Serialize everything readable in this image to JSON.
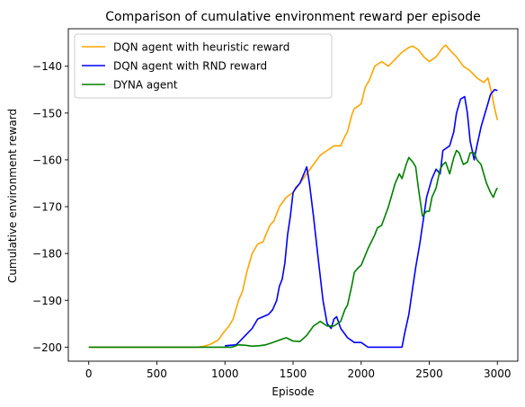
{
  "chart_data": {
    "type": "line",
    "title": "Comparison of cumulative environment reward per episode",
    "xlabel": "Episode",
    "ylabel": "Cumulative environment reward",
    "xlim": [
      -150,
      3150
    ],
    "ylim": [
      -203,
      -132
    ],
    "xticks": [
      0,
      500,
      1000,
      1500,
      2000,
      2500,
      3000
    ],
    "yticks": [
      -200,
      -190,
      -180,
      -170,
      -160,
      -150,
      -140
    ],
    "xtick_labels": [
      "0",
      "500",
      "1000",
      "1500",
      "2000",
      "2500",
      "3000"
    ],
    "ytick_labels": [
      "−200",
      "−190",
      "−180",
      "−170",
      "−160",
      "−150",
      "−140"
    ],
    "grid": false,
    "legend_position": "top-left",
    "series": [
      {
        "name": "DQN agent with heuristic reward",
        "color": "#FFA500",
        "points": [
          [
            0,
            -200
          ],
          [
            800,
            -200
          ],
          [
            850,
            -199.8
          ],
          [
            900,
            -199.3
          ],
          [
            950,
            -198.5
          ],
          [
            1000,
            -196.5
          ],
          [
            1030,
            -195.5
          ],
          [
            1060,
            -194
          ],
          [
            1100,
            -190
          ],
          [
            1130,
            -188
          ],
          [
            1160,
            -184
          ],
          [
            1200,
            -180
          ],
          [
            1240,
            -178
          ],
          [
            1280,
            -177.5
          ],
          [
            1300,
            -176
          ],
          [
            1330,
            -174
          ],
          [
            1360,
            -173
          ],
          [
            1400,
            -170
          ],
          [
            1450,
            -168
          ],
          [
            1500,
            -167
          ],
          [
            1550,
            -165
          ],
          [
            1600,
            -163
          ],
          [
            1650,
            -161
          ],
          [
            1700,
            -159
          ],
          [
            1750,
            -158
          ],
          [
            1800,
            -157
          ],
          [
            1850,
            -157
          ],
          [
            1880,
            -155
          ],
          [
            1900,
            -154
          ],
          [
            1930,
            -150.5
          ],
          [
            1950,
            -149
          ],
          [
            1980,
            -148.5
          ],
          [
            2000,
            -148
          ],
          [
            2030,
            -144.5
          ],
          [
            2060,
            -143
          ],
          [
            2100,
            -140
          ],
          [
            2150,
            -139
          ],
          [
            2200,
            -140
          ],
          [
            2250,
            -138.5
          ],
          [
            2300,
            -137
          ],
          [
            2350,
            -136
          ],
          [
            2380,
            -135.7
          ],
          [
            2420,
            -136.5
          ],
          [
            2460,
            -138
          ],
          [
            2500,
            -139
          ],
          [
            2550,
            -138
          ],
          [
            2600,
            -136
          ],
          [
            2620,
            -135.5
          ],
          [
            2650,
            -136.5
          ],
          [
            2700,
            -138
          ],
          [
            2750,
            -140
          ],
          [
            2800,
            -141
          ],
          [
            2850,
            -142.5
          ],
          [
            2900,
            -143.5
          ],
          [
            2930,
            -142.5
          ],
          [
            2960,
            -146
          ],
          [
            2980,
            -149
          ],
          [
            3000,
            -151.5
          ]
        ]
      },
      {
        "name": "DQN agent with RND reward",
        "color": "#0000FF",
        "points": [
          [
            1000,
            -199.7
          ],
          [
            1080,
            -199.5
          ],
          [
            1100,
            -199
          ],
          [
            1150,
            -197.5
          ],
          [
            1200,
            -196
          ],
          [
            1240,
            -194
          ],
          [
            1280,
            -193.5
          ],
          [
            1320,
            -193
          ],
          [
            1350,
            -192
          ],
          [
            1380,
            -190
          ],
          [
            1400,
            -187
          ],
          [
            1420,
            -185.5
          ],
          [
            1440,
            -182
          ],
          [
            1460,
            -176
          ],
          [
            1480,
            -172
          ],
          [
            1500,
            -167
          ],
          [
            1520,
            -166
          ],
          [
            1550,
            -165
          ],
          [
            1580,
            -163
          ],
          [
            1600,
            -161.5
          ],
          [
            1620,
            -165
          ],
          [
            1650,
            -172
          ],
          [
            1680,
            -180
          ],
          [
            1700,
            -185
          ],
          [
            1720,
            -190
          ],
          [
            1750,
            -195
          ],
          [
            1780,
            -196
          ],
          [
            1800,
            -194
          ],
          [
            1820,
            -193.5
          ],
          [
            1850,
            -196
          ],
          [
            1900,
            -198
          ],
          [
            1950,
            -199
          ],
          [
            2000,
            -199
          ],
          [
            2050,
            -200
          ],
          [
            2300,
            -200
          ],
          [
            2320,
            -197
          ],
          [
            2350,
            -193
          ],
          [
            2380,
            -187
          ],
          [
            2400,
            -183
          ],
          [
            2430,
            -178
          ],
          [
            2460,
            -172
          ],
          [
            2480,
            -168
          ],
          [
            2500,
            -166
          ],
          [
            2520,
            -164
          ],
          [
            2550,
            -162
          ],
          [
            2580,
            -163
          ],
          [
            2600,
            -158
          ],
          [
            2650,
            -157
          ],
          [
            2680,
            -154
          ],
          [
            2700,
            -150
          ],
          [
            2730,
            -147
          ],
          [
            2760,
            -146.5
          ],
          [
            2780,
            -150
          ],
          [
            2800,
            -156
          ],
          [
            2830,
            -160
          ],
          [
            2850,
            -157
          ],
          [
            2880,
            -153
          ],
          [
            2900,
            -151
          ],
          [
            2930,
            -148
          ],
          [
            2950,
            -146
          ],
          [
            2980,
            -145
          ],
          [
            3000,
            -145.2
          ]
        ]
      },
      {
        "name": "DYNA agent",
        "color": "#008000",
        "points": [
          [
            0,
            -200
          ],
          [
            1000,
            -200
          ],
          [
            1050,
            -200
          ],
          [
            1100,
            -199.5
          ],
          [
            1150,
            -199.6
          ],
          [
            1200,
            -199.8
          ],
          [
            1250,
            -199.7
          ],
          [
            1300,
            -199.5
          ],
          [
            1350,
            -199
          ],
          [
            1400,
            -198.5
          ],
          [
            1450,
            -198
          ],
          [
            1500,
            -198.7
          ],
          [
            1550,
            -198.8
          ],
          [
            1600,
            -197.5
          ],
          [
            1650,
            -195.5
          ],
          [
            1700,
            -194.5
          ],
          [
            1750,
            -195.5
          ],
          [
            1800,
            -195.5
          ],
          [
            1850,
            -194.5
          ],
          [
            1880,
            -192
          ],
          [
            1900,
            -191
          ],
          [
            1930,
            -187
          ],
          [
            1950,
            -184
          ],
          [
            1980,
            -183
          ],
          [
            2000,
            -182.5
          ],
          [
            2050,
            -179
          ],
          [
            2100,
            -176
          ],
          [
            2120,
            -174.5
          ],
          [
            2150,
            -174
          ],
          [
            2200,
            -170
          ],
          [
            2250,
            -165
          ],
          [
            2280,
            -163
          ],
          [
            2300,
            -164
          ],
          [
            2330,
            -161
          ],
          [
            2350,
            -159.5
          ],
          [
            2380,
            -160.5
          ],
          [
            2400,
            -161.5
          ],
          [
            2420,
            -166
          ],
          [
            2450,
            -172
          ],
          [
            2480,
            -171
          ],
          [
            2500,
            -171
          ],
          [
            2520,
            -168
          ],
          [
            2550,
            -166
          ],
          [
            2580,
            -162
          ],
          [
            2600,
            -161
          ],
          [
            2620,
            -160.5
          ],
          [
            2650,
            -163
          ],
          [
            2680,
            -159.5
          ],
          [
            2700,
            -158
          ],
          [
            2720,
            -158.5
          ],
          [
            2750,
            -161
          ],
          [
            2780,
            -160.5
          ],
          [
            2800,
            -158.5
          ],
          [
            2830,
            -158.5
          ],
          [
            2850,
            -160
          ],
          [
            2880,
            -161
          ],
          [
            2900,
            -163
          ],
          [
            2920,
            -165
          ],
          [
            2950,
            -167
          ],
          [
            2970,
            -168
          ],
          [
            2990,
            -166.5
          ],
          [
            3000,
            -166
          ]
        ]
      }
    ]
  }
}
